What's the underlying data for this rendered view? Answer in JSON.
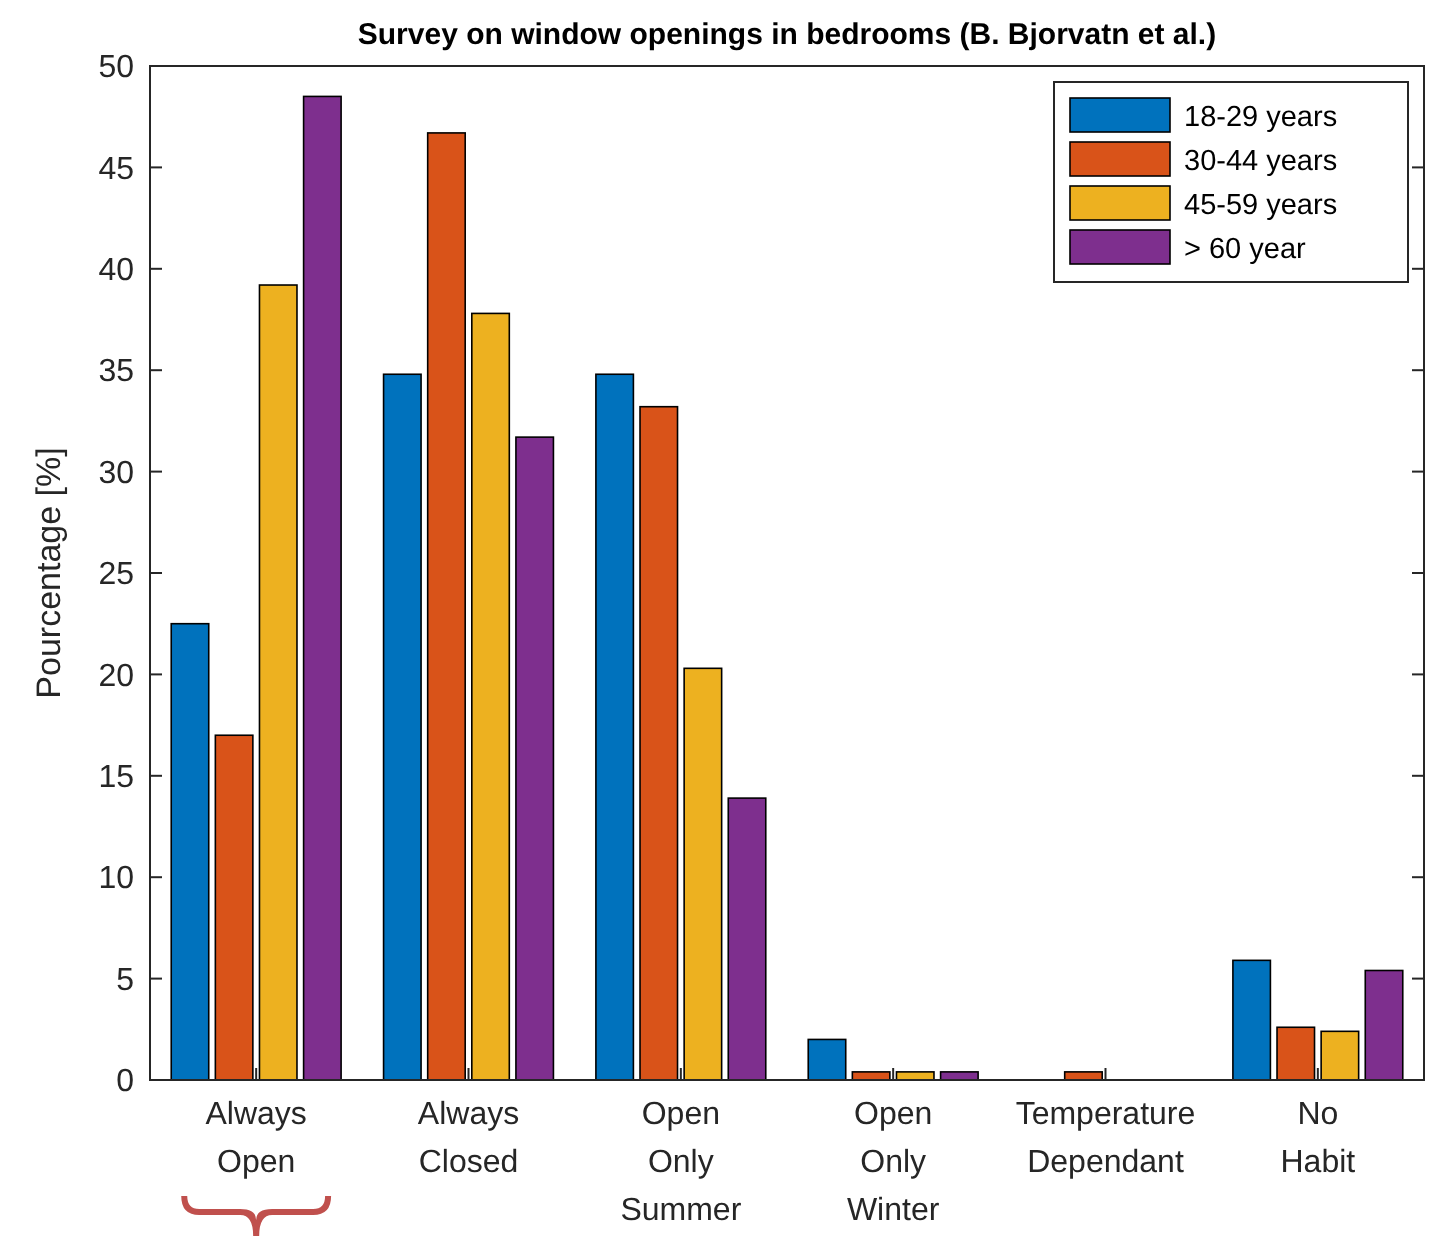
{
  "chart_data": {
    "type": "bar",
    "title": "Survey on window openings in bedrooms (B. Bjorvatn et al.)",
    "ylabel": "Pourcentage [%]",
    "categories": [
      "Always Open",
      "Always Closed",
      "Open Only Summer",
      "Open Only Winter",
      "Temperature Dependant",
      "No Habit"
    ],
    "series": [
      {
        "name": "18-29 years",
        "color": "#0072bd",
        "values": [
          22.5,
          34.8,
          34.8,
          2,
          0,
          5.9
        ]
      },
      {
        "name": "30-44 years",
        "color": "#d95319",
        "values": [
          17,
          46.7,
          33.2,
          0.4,
          0.4,
          2.6
        ]
      },
      {
        "name": "45-59 years",
        "color": "#edb120",
        "values": [
          39.2,
          37.8,
          20.3,
          0.4,
          0,
          2.4
        ]
      },
      {
        "name": "> 60 year",
        "color": "#7e2f8e",
        "values": [
          48.5,
          31.7,
          13.9,
          0.4,
          0,
          5.4
        ]
      }
    ],
    "ylim": [
      0,
      50
    ],
    "yticks": [
      0,
      5,
      10,
      15,
      20,
      25,
      30,
      35,
      40,
      45,
      50
    ],
    "grid": false,
    "legend": "top right"
  }
}
